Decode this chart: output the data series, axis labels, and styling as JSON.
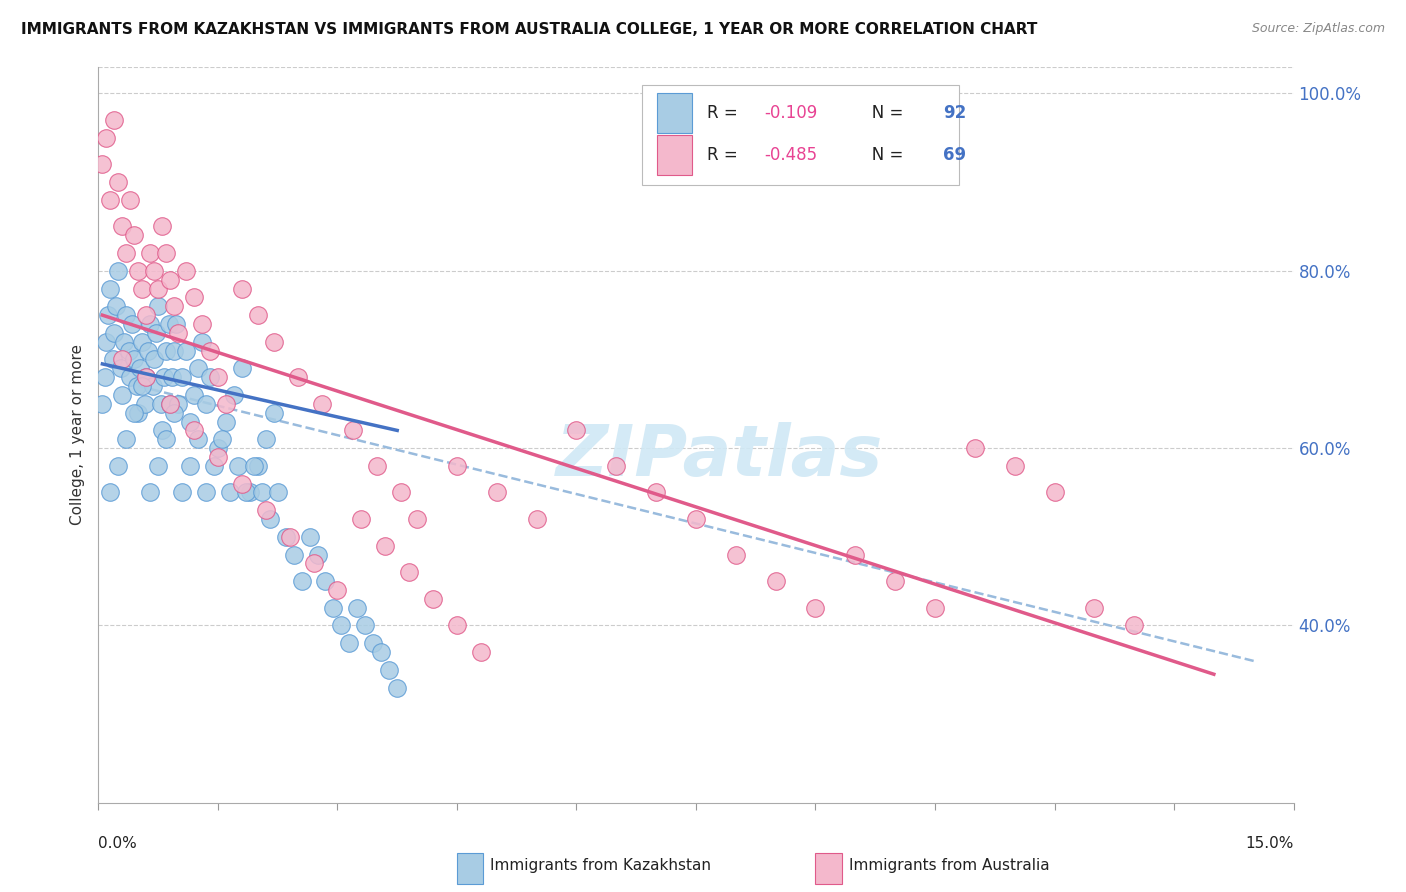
{
  "title": "IMMIGRANTS FROM KAZAKHSTAN VS IMMIGRANTS FROM AUSTRALIA COLLEGE, 1 YEAR OR MORE CORRELATION CHART",
  "source": "Source: ZipAtlas.com",
  "ylabel": "College, 1 year or more",
  "xmin": 0.0,
  "xmax": 15.0,
  "ymin": 20.0,
  "ymax": 103.0,
  "right_yticks": [
    40.0,
    60.0,
    80.0,
    100.0
  ],
  "right_yticklabels": [
    "40.0%",
    "60.0%",
    "80.0%",
    "100.0%"
  ],
  "R_kaz": -0.109,
  "N_kaz": 92,
  "R_aus": -0.485,
  "N_aus": 69,
  "color_kaz_fill": "#a8cce4",
  "color_kaz_edge": "#5b9bd5",
  "color_aus_fill": "#f4b8cc",
  "color_aus_edge": "#e05a8a",
  "color_kaz_line": "#4472c4",
  "color_aus_line": "#e05a8a",
  "color_dash_line": "#99bbdd",
  "watermark_color": "#d0e8f5",
  "kaz_x": [
    0.05,
    0.08,
    0.1,
    0.12,
    0.15,
    0.18,
    0.2,
    0.22,
    0.25,
    0.28,
    0.3,
    0.32,
    0.35,
    0.38,
    0.4,
    0.42,
    0.45,
    0.48,
    0.5,
    0.52,
    0.55,
    0.58,
    0.6,
    0.62,
    0.65,
    0.68,
    0.7,
    0.72,
    0.75,
    0.78,
    0.8,
    0.82,
    0.85,
    0.88,
    0.9,
    0.92,
    0.95,
    0.98,
    1.0,
    1.05,
    1.1,
    1.15,
    1.2,
    1.25,
    1.3,
    1.35,
    1.4,
    1.5,
    1.6,
    1.7,
    1.8,
    1.9,
    2.0,
    2.1,
    2.2,
    0.15,
    0.25,
    0.35,
    0.45,
    0.55,
    0.65,
    0.75,
    0.85,
    0.95,
    1.05,
    1.15,
    1.25,
    1.35,
    1.45,
    1.55,
    1.65,
    1.75,
    1.85,
    1.95,
    2.05,
    2.15,
    2.25,
    2.35,
    2.45,
    2.55,
    2.65,
    2.75,
    2.85,
    2.95,
    3.05,
    3.15,
    3.25,
    3.35,
    3.45,
    3.55,
    3.65,
    3.75
  ],
  "kaz_y": [
    65,
    68,
    72,
    75,
    78,
    70,
    73,
    76,
    80,
    69,
    66,
    72,
    75,
    71,
    68,
    74,
    70,
    67,
    64,
    69,
    72,
    65,
    68,
    71,
    74,
    67,
    70,
    73,
    76,
    65,
    62,
    68,
    71,
    74,
    65,
    68,
    71,
    74,
    65,
    68,
    71,
    63,
    66,
    69,
    72,
    65,
    68,
    60,
    63,
    66,
    69,
    55,
    58,
    61,
    64,
    55,
    58,
    61,
    64,
    67,
    55,
    58,
    61,
    64,
    55,
    58,
    61,
    55,
    58,
    61,
    55,
    58,
    55,
    58,
    55,
    52,
    55,
    50,
    48,
    45,
    50,
    48,
    45,
    42,
    40,
    38,
    42,
    40,
    38,
    37,
    35,
    33
  ],
  "aus_x": [
    0.05,
    0.1,
    0.15,
    0.2,
    0.25,
    0.3,
    0.35,
    0.4,
    0.45,
    0.5,
    0.55,
    0.6,
    0.65,
    0.7,
    0.75,
    0.8,
    0.85,
    0.9,
    0.95,
    1.0,
    1.1,
    1.2,
    1.3,
    1.4,
    1.5,
    1.6,
    1.8,
    2.0,
    2.2,
    2.5,
    2.8,
    3.2,
    3.5,
    3.8,
    4.0,
    4.5,
    5.0,
    5.5,
    6.0,
    6.5,
    7.0,
    7.5,
    8.0,
    8.5,
    9.0,
    9.5,
    10.0,
    10.5,
    11.0,
    11.5,
    12.0,
    12.5,
    13.0,
    0.3,
    0.6,
    0.9,
    1.2,
    1.5,
    1.8,
    2.1,
    2.4,
    2.7,
    3.0,
    3.3,
    3.6,
    3.9,
    4.2,
    4.5,
    4.8
  ],
  "aus_y": [
    92,
    95,
    88,
    97,
    90,
    85,
    82,
    88,
    84,
    80,
    78,
    75,
    82,
    80,
    78,
    85,
    82,
    79,
    76,
    73,
    80,
    77,
    74,
    71,
    68,
    65,
    78,
    75,
    72,
    68,
    65,
    62,
    58,
    55,
    52,
    58,
    55,
    52,
    62,
    58,
    55,
    52,
    48,
    45,
    42,
    48,
    45,
    42,
    60,
    58,
    55,
    42,
    40,
    70,
    68,
    65,
    62,
    59,
    56,
    53,
    50,
    47,
    44,
    52,
    49,
    46,
    43,
    40,
    37
  ],
  "kaz_line_x0": 0.05,
  "kaz_line_x1": 3.75,
  "kaz_line_y0": 69.5,
  "kaz_line_y1": 62.0,
  "aus_line_x0": 0.05,
  "aus_line_x1": 14.0,
  "aus_line_y0": 75.0,
  "aus_line_y1": 34.5,
  "dash_line_x0": 0.5,
  "dash_line_x1": 14.5,
  "dash_line_y0": 67.0,
  "dash_line_y1": 36.0
}
